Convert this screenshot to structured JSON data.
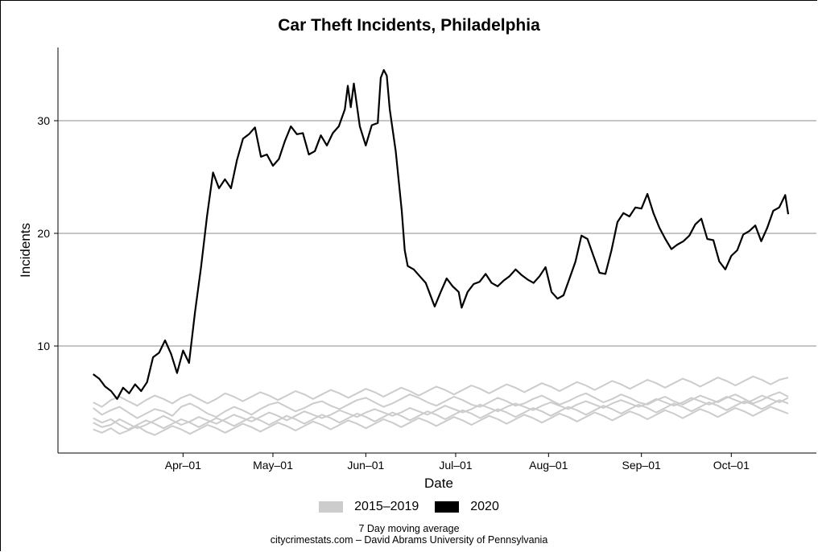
{
  "chart_data": {
    "type": "line",
    "title": "Car Theft Incidents, Philadelphia",
    "xlabel": "Date",
    "ylabel": "Incidents",
    "x_range": [
      "2020-03-01",
      "2020-10-20"
    ],
    "ylim": [
      0.5,
      36.5
    ],
    "y_ticks": [
      10,
      20,
      30
    ],
    "x_ticks": [
      {
        "date": "2020-04-01",
        "label": "Apr–01"
      },
      {
        "date": "2020-05-01",
        "label": "May–01"
      },
      {
        "date": "2020-06-01",
        "label": "Jun–01"
      },
      {
        "date": "2020-07-01",
        "label": "Jul–01"
      },
      {
        "date": "2020-08-01",
        "label": "Aug–01"
      },
      {
        "date": "2020-09-01",
        "label": "Sep–01"
      },
      {
        "date": "2020-10-01",
        "label": "Oct–01"
      }
    ],
    "grid": "horizontal",
    "legend_position": "bottom",
    "legend": [
      {
        "label": "2015–2019",
        "color": "#cccccc"
      },
      {
        "label": "2020",
        "color": "#000000"
      }
    ],
    "series": [
      {
        "name": "2020",
        "color": "#000000",
        "points": [
          [
            "2020-03-02",
            7.5
          ],
          [
            "2020-03-04",
            7.1
          ],
          [
            "2020-03-06",
            6.4
          ],
          [
            "2020-03-08",
            6.0
          ],
          [
            "2020-03-10",
            5.3
          ],
          [
            "2020-03-12",
            6.3
          ],
          [
            "2020-03-14",
            5.8
          ],
          [
            "2020-03-16",
            6.6
          ],
          [
            "2020-03-18",
            6.0
          ],
          [
            "2020-03-20",
            6.8
          ],
          [
            "2020-03-22",
            9.0
          ],
          [
            "2020-03-24",
            9.4
          ],
          [
            "2020-03-26",
            10.5
          ],
          [
            "2020-03-28",
            9.3
          ],
          [
            "2020-03-30",
            7.6
          ],
          [
            "2020-04-01",
            9.6
          ],
          [
            "2020-04-03",
            8.5
          ],
          [
            "2020-04-05",
            13.0
          ],
          [
            "2020-04-07",
            17.0
          ],
          [
            "2020-04-09",
            21.5
          ],
          [
            "2020-04-11",
            25.4
          ],
          [
            "2020-04-13",
            24.0
          ],
          [
            "2020-04-15",
            24.8
          ],
          [
            "2020-04-17",
            24.0
          ],
          [
            "2020-04-19",
            26.5
          ],
          [
            "2020-04-21",
            28.4
          ],
          [
            "2020-04-23",
            28.8
          ],
          [
            "2020-04-25",
            29.4
          ],
          [
            "2020-04-27",
            26.8
          ],
          [
            "2020-04-29",
            27.0
          ],
          [
            "2020-05-01",
            26.0
          ],
          [
            "2020-05-03",
            26.6
          ],
          [
            "2020-05-05",
            28.2
          ],
          [
            "2020-05-07",
            29.5
          ],
          [
            "2020-05-09",
            28.8
          ],
          [
            "2020-05-11",
            28.9
          ],
          [
            "2020-05-13",
            27.0
          ],
          [
            "2020-05-15",
            27.3
          ],
          [
            "2020-05-17",
            28.7
          ],
          [
            "2020-05-19",
            27.8
          ],
          [
            "2020-05-21",
            28.9
          ],
          [
            "2020-05-23",
            29.5
          ],
          [
            "2020-05-25",
            31.0
          ],
          [
            "2020-05-26",
            33.1
          ],
          [
            "2020-05-27",
            31.2
          ],
          [
            "2020-05-28",
            33.3
          ],
          [
            "2020-05-30",
            29.5
          ],
          [
            "2020-06-01",
            27.8
          ],
          [
            "2020-06-03",
            29.6
          ],
          [
            "2020-06-05",
            29.8
          ],
          [
            "2020-06-06",
            33.8
          ],
          [
            "2020-06-07",
            34.5
          ],
          [
            "2020-06-08",
            34.0
          ],
          [
            "2020-06-09",
            31.0
          ],
          [
            "2020-06-11",
            27.3
          ],
          [
            "2020-06-13",
            22.0
          ],
          [
            "2020-06-14",
            18.5
          ],
          [
            "2020-06-15",
            17.1
          ],
          [
            "2020-06-17",
            16.8
          ],
          [
            "2020-06-19",
            16.2
          ],
          [
            "2020-06-21",
            15.6
          ],
          [
            "2020-06-23",
            14.2
          ],
          [
            "2020-06-24",
            13.5
          ],
          [
            "2020-06-26",
            14.8
          ],
          [
            "2020-06-28",
            16.0
          ],
          [
            "2020-06-30",
            15.3
          ],
          [
            "2020-07-02",
            14.8
          ],
          [
            "2020-07-03",
            13.4
          ],
          [
            "2020-07-05",
            14.8
          ],
          [
            "2020-07-07",
            15.5
          ],
          [
            "2020-07-09",
            15.7
          ],
          [
            "2020-07-11",
            16.4
          ],
          [
            "2020-07-13",
            15.6
          ],
          [
            "2020-07-15",
            15.3
          ],
          [
            "2020-07-17",
            15.8
          ],
          [
            "2020-07-19",
            16.2
          ],
          [
            "2020-07-21",
            16.8
          ],
          [
            "2020-07-23",
            16.3
          ],
          [
            "2020-07-25",
            15.9
          ],
          [
            "2020-07-27",
            15.6
          ],
          [
            "2020-07-29",
            16.2
          ],
          [
            "2020-07-31",
            17.0
          ],
          [
            "2020-08-02",
            14.8
          ],
          [
            "2020-08-04",
            14.2
          ],
          [
            "2020-08-06",
            14.5
          ],
          [
            "2020-08-08",
            16.0
          ],
          [
            "2020-08-10",
            17.5
          ],
          [
            "2020-08-12",
            19.8
          ],
          [
            "2020-08-14",
            19.5
          ],
          [
            "2020-08-16",
            18.0
          ],
          [
            "2020-08-18",
            16.5
          ],
          [
            "2020-08-20",
            16.4
          ],
          [
            "2020-08-22",
            18.5
          ],
          [
            "2020-08-24",
            21.0
          ],
          [
            "2020-08-26",
            21.8
          ],
          [
            "2020-08-28",
            21.5
          ],
          [
            "2020-08-30",
            22.3
          ],
          [
            "2020-09-01",
            22.2
          ],
          [
            "2020-09-03",
            23.5
          ],
          [
            "2020-09-05",
            21.8
          ],
          [
            "2020-09-07",
            20.5
          ],
          [
            "2020-09-09",
            19.5
          ],
          [
            "2020-09-11",
            18.6
          ],
          [
            "2020-09-13",
            19.0
          ],
          [
            "2020-09-15",
            19.3
          ],
          [
            "2020-09-17",
            19.8
          ],
          [
            "2020-09-19",
            20.8
          ],
          [
            "2020-09-21",
            21.3
          ],
          [
            "2020-09-23",
            19.5
          ],
          [
            "2020-09-25",
            19.4
          ],
          [
            "2020-09-27",
            17.5
          ],
          [
            "2020-09-29",
            16.8
          ],
          [
            "2020-10-01",
            18.0
          ],
          [
            "2020-10-03",
            18.5
          ],
          [
            "2020-10-05",
            19.9
          ],
          [
            "2020-10-07",
            20.2
          ],
          [
            "2020-10-09",
            20.7
          ],
          [
            "2020-10-11",
            19.3
          ],
          [
            "2020-10-13",
            20.5
          ],
          [
            "2020-10-15",
            22.0
          ],
          [
            "2020-10-17",
            22.3
          ],
          [
            "2020-10-19",
            23.4
          ],
          [
            "2020-10-20",
            21.7
          ]
        ]
      }
    ],
    "historical_series": {
      "label": "2015–2019",
      "color": "#cccccc",
      "start_date": "2020-03-02",
      "end_date": "2020-10-20",
      "years": [
        {
          "year": "2015",
          "values": [
            4.5,
            3.9,
            4.3,
            4.6,
            4.1,
            3.6,
            4.0,
            4.4,
            4.2,
            3.8,
            4.6,
            4.9,
            4.5,
            4.0,
            3.7,
            4.2,
            4.6,
            4.3,
            3.9,
            4.4,
            4.8,
            5.0,
            4.6,
            4.2,
            4.5,
            4.9,
            5.1,
            4.7,
            4.4,
            4.8,
            5.2,
            5.4,
            5.0,
            4.6,
            4.9,
            5.3,
            5.7,
            5.4,
            5.0,
            4.7,
            5.1,
            5.5,
            5.2,
            4.8,
            4.6,
            5.0,
            5.4,
            5.1,
            4.7,
            4.9,
            5.3,
            5.6,
            5.2,
            4.8,
            5.1,
            5.5,
            5.8,
            5.4,
            5.0,
            5.3,
            5.7,
            5.4,
            5.0,
            4.8,
            5.2,
            5.5,
            5.1,
            4.8,
            5.2,
            5.6,
            5.3,
            5.0,
            5.4,
            5.7,
            5.3,
            4.9,
            5.2,
            5.6,
            5.9,
            5.5
          ]
        },
        {
          "year": "2016",
          "values": [
            3.2,
            2.8,
            3.0,
            3.5,
            3.1,
            2.7,
            3.0,
            3.4,
            3.8,
            3.4,
            3.0,
            3.3,
            3.7,
            3.4,
            3.1,
            3.5,
            3.9,
            3.6,
            3.3,
            3.7,
            4.1,
            3.8,
            3.4,
            3.8,
            4.2,
            3.9,
            3.6,
            3.9,
            4.3,
            4.0,
            3.7,
            4.1,
            4.4,
            4.1,
            3.8,
            4.1,
            4.5,
            4.2,
            3.9,
            4.3,
            4.7,
            4.4,
            4.1,
            4.4,
            4.8,
            4.5,
            4.2,
            4.6,
            4.9,
            4.6,
            4.3,
            4.7,
            5.0,
            4.7,
            4.4,
            4.8,
            5.1,
            4.8,
            4.5,
            4.9,
            5.2,
            4.9,
            4.6,
            4.9,
            5.3,
            5.0,
            4.7,
            5.0,
            5.4,
            5.1,
            4.8,
            5.1,
            5.5,
            5.2,
            4.9,
            5.2,
            5.6,
            5.3,
            5.0,
            5.4
          ]
        },
        {
          "year": "2017",
          "values": [
            3.6,
            3.2,
            3.5,
            3.0,
            2.6,
            3.0,
            3.4,
            3.1,
            2.7,
            3.1,
            3.5,
            3.2,
            2.8,
            3.2,
            3.6,
            3.3,
            2.9,
            3.3,
            3.7,
            3.4,
            3.0,
            3.4,
            3.8,
            3.5,
            3.1,
            3.5,
            3.9,
            3.6,
            3.2,
            3.6,
            4.0,
            3.7,
            3.3,
            3.7,
            4.1,
            3.8,
            3.4,
            3.8,
            4.2,
            3.9,
            3.5,
            3.9,
            4.3,
            4.0,
            3.6,
            4.0,
            4.4,
            4.1,
            3.7,
            4.1,
            4.5,
            4.2,
            3.8,
            4.2,
            4.6,
            4.3,
            3.9,
            4.3,
            4.7,
            4.4,
            4.0,
            4.4,
            4.8,
            4.5,
            4.1,
            4.5,
            4.9,
            4.6,
            4.2,
            4.6,
            5.0,
            4.7,
            4.3,
            4.7,
            5.1,
            4.8,
            4.4,
            4.8,
            5.2,
            4.9
          ]
        },
        {
          "year": "2018",
          "values": [
            5.0,
            4.6,
            5.2,
            5.5,
            5.1,
            4.7,
            5.2,
            5.6,
            5.3,
            4.9,
            5.4,
            5.7,
            5.3,
            4.9,
            5.3,
            5.8,
            5.5,
            5.1,
            5.5,
            5.9,
            5.6,
            5.2,
            5.6,
            6.0,
            5.7,
            5.3,
            5.7,
            6.1,
            5.8,
            5.4,
            5.8,
            6.2,
            5.9,
            5.5,
            5.9,
            6.3,
            6.0,
            5.6,
            6.0,
            6.4,
            6.1,
            5.7,
            6.1,
            6.5,
            6.2,
            5.8,
            6.2,
            6.6,
            6.3,
            5.9,
            6.3,
            6.7,
            6.4,
            6.0,
            6.4,
            6.8,
            6.5,
            6.1,
            6.5,
            6.9,
            6.6,
            6.2,
            6.6,
            7.0,
            6.7,
            6.3,
            6.7,
            7.1,
            6.8,
            6.4,
            6.8,
            7.2,
            6.9,
            6.5,
            6.9,
            7.3,
            7.0,
            6.6,
            7.0,
            7.2
          ]
        },
        {
          "year": "2019",
          "values": [
            2.6,
            2.3,
            2.7,
            2.2,
            2.5,
            2.9,
            2.4,
            2.1,
            2.5,
            2.9,
            2.6,
            2.2,
            2.6,
            3.0,
            2.7,
            2.3,
            2.7,
            3.1,
            2.8,
            2.4,
            2.8,
            3.2,
            2.9,
            2.5,
            2.9,
            3.3,
            3.0,
            2.6,
            3.0,
            3.4,
            3.1,
            2.7,
            3.1,
            3.5,
            3.2,
            2.8,
            3.2,
            3.6,
            3.3,
            2.9,
            3.3,
            3.7,
            3.4,
            3.0,
            3.4,
            3.8,
            3.5,
            3.1,
            3.5,
            3.9,
            3.6,
            3.2,
            3.6,
            4.0,
            3.7,
            3.3,
            3.7,
            4.1,
            3.8,
            3.4,
            3.8,
            4.2,
            3.9,
            3.5,
            3.9,
            4.3,
            4.0,
            3.6,
            4.0,
            4.4,
            4.1,
            3.7,
            4.1,
            4.5,
            4.2,
            3.8,
            4.2,
            4.6,
            4.3,
            4.0
          ]
        }
      ]
    }
  },
  "caption": {
    "line1": "7 Day moving average",
    "line2": "citycrimestats.com –  David Abrams University of Pennsylvania"
  }
}
